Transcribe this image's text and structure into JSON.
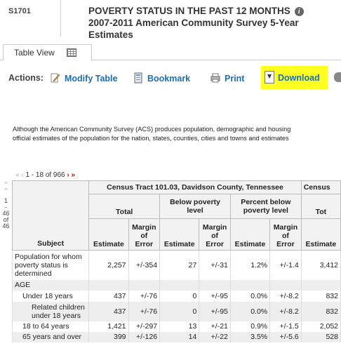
{
  "header": {
    "table_id": "S1701",
    "title_line1": "POVERTY STATUS IN THE PAST 12 MONTHS",
    "title_line2": "2007-2011 American Community Survey 5-Year Estimates"
  },
  "tabs": [
    {
      "label": "Table View"
    }
  ],
  "actions": {
    "label": "Actions:",
    "items": [
      {
        "label": "Modify Table",
        "icon": "pencil-icon"
      },
      {
        "label": "Bookmark",
        "icon": "bookmark-icon"
      },
      {
        "label": "Print",
        "icon": "printer-icon"
      },
      {
        "label": "Download",
        "icon": "download-icon"
      }
    ],
    "highlight_color": "#ffff22",
    "link_color": "#1a6fb5"
  },
  "disclaimer": {
    "line1": "Although the American Community Survey (ACS) produces population, demographic and housing",
    "line2": "official estimates of the population for the nation, states, counties, cities and towns and estimates"
  },
  "pager": {
    "range": "1 - 18 of 966",
    "first": "«",
    "prev": "‹",
    "next": "›",
    "last": "»"
  },
  "column_pager": {
    "up": "^",
    "start": "1",
    "dash": "-",
    "end": "46",
    "of": "of",
    "total": "46"
  },
  "table": {
    "geo_header": "Census Tract 101.03, Davidson County, Tennessee",
    "geo_header_2": "Census",
    "groups": [
      "Total",
      "Below poverty level",
      "Percent below poverty level",
      "Tot"
    ],
    "subject_header": "Subject",
    "subheaders": [
      "Estimate",
      "Margin of Error",
      "Estimate",
      "Margin of Error",
      "Estimate",
      "Margin of Error",
      "Estimate"
    ],
    "rows": [
      {
        "subject": "Population for whom poverty status is determined",
        "values": [
          "2,257",
          "+/-354",
          "27",
          "+/-31",
          "1.2%",
          "+/-1.4",
          "3,412"
        ]
      },
      {
        "subject": "AGE",
        "values": [
          "",
          "",
          "",
          "",
          "",
          "",
          ""
        ]
      },
      {
        "subject": "Under 18 years",
        "values": [
          "437",
          "+/-76",
          "0",
          "+/-95",
          "0.0%",
          "+/-8.2",
          "832"
        ]
      },
      {
        "subject": "Related children under 18 years",
        "values": [
          "437",
          "+/-76",
          "0",
          "+/-95",
          "0.0%",
          "+/-8.2",
          "832"
        ]
      },
      {
        "subject": "18 to 64 years",
        "values": [
          "1,421",
          "+/-297",
          "13",
          "+/-21",
          "0.9%",
          "+/-1.5",
          "2,052"
        ]
      },
      {
        "subject": "65 years and over",
        "values": [
          "399",
          "+/-126",
          "14",
          "+/-22",
          "3.5%",
          "+/-5.6",
          "528"
        ]
      }
    ]
  }
}
